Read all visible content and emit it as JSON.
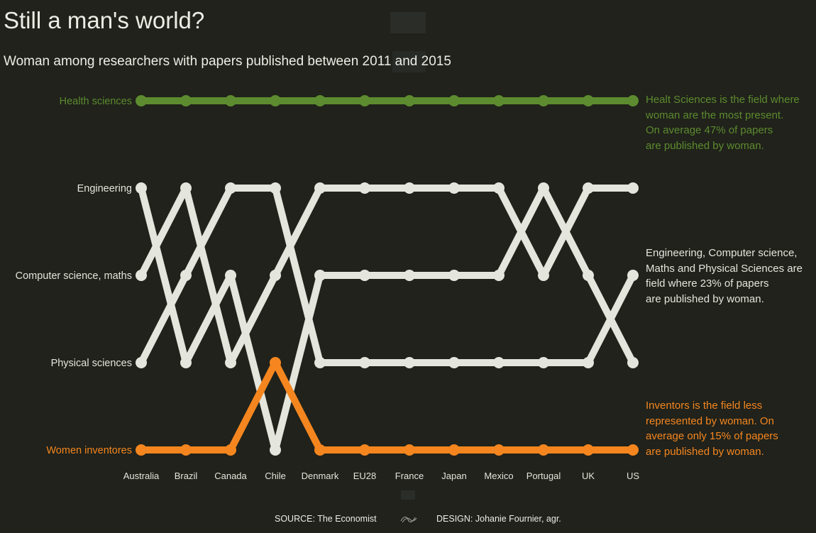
{
  "title": "Still a man's world?",
  "subtitle": "Woman among researchers with papers published between 2011 and 2015",
  "colors": {
    "background": "#20221b",
    "health": "#5d8b2f",
    "neutral": "#e4e6dd",
    "inventors": "#f5861f"
  },
  "annotations": {
    "health": [
      "Healt Sciences is the field where",
      "woman are the most present.",
      "On average 47% of papers",
      "are published by woman."
    ],
    "stem": [
      "Engineering, Computer science,",
      "Maths and Physical Sciences are",
      "field where 23% of papers",
      "are published by woman."
    ],
    "inventors": [
      "Inventors is the field less",
      "represented by woman. On",
      "average only 15% of papers",
      "are published by woman."
    ]
  },
  "footer": {
    "source": "SOURCE: The Economist",
    "design": "DESIGN: Johanie Fournier, agr."
  },
  "chart_data": {
    "type": "bump",
    "categories": [
      "Australia",
      "Brazil",
      "Canada",
      "Chile",
      "Denmark",
      "EU28",
      "France",
      "Japan",
      "Mexico",
      "Portugal",
      "UK",
      "US"
    ],
    "rank_labels": [
      "Health sciences",
      "Engineering",
      "Computer science, maths",
      "Physical sciences",
      "Women inventores"
    ],
    "series": [
      {
        "name": "Health sciences",
        "color": "health",
        "ranks": [
          1,
          1,
          1,
          1,
          1,
          1,
          1,
          1,
          1,
          1,
          1,
          1
        ]
      },
      {
        "name": "Engineering",
        "color": "neutral",
        "ranks": [
          2,
          4,
          3,
          5,
          3,
          3,
          3,
          3,
          3,
          2,
          3,
          4
        ]
      },
      {
        "name": "Computer science, maths",
        "color": "neutral",
        "ranks": [
          3,
          2,
          4,
          3,
          2,
          2,
          2,
          2,
          2,
          3,
          2,
          2
        ]
      },
      {
        "name": "Physical sciences",
        "color": "neutral",
        "ranks": [
          4,
          3,
          2,
          2,
          4,
          4,
          4,
          4,
          4,
          4,
          4,
          3
        ]
      },
      {
        "name": "Women inventores",
        "color": "inventors",
        "ranks": [
          5,
          5,
          5,
          4,
          5,
          5,
          5,
          5,
          5,
          5,
          5,
          5
        ]
      }
    ]
  }
}
